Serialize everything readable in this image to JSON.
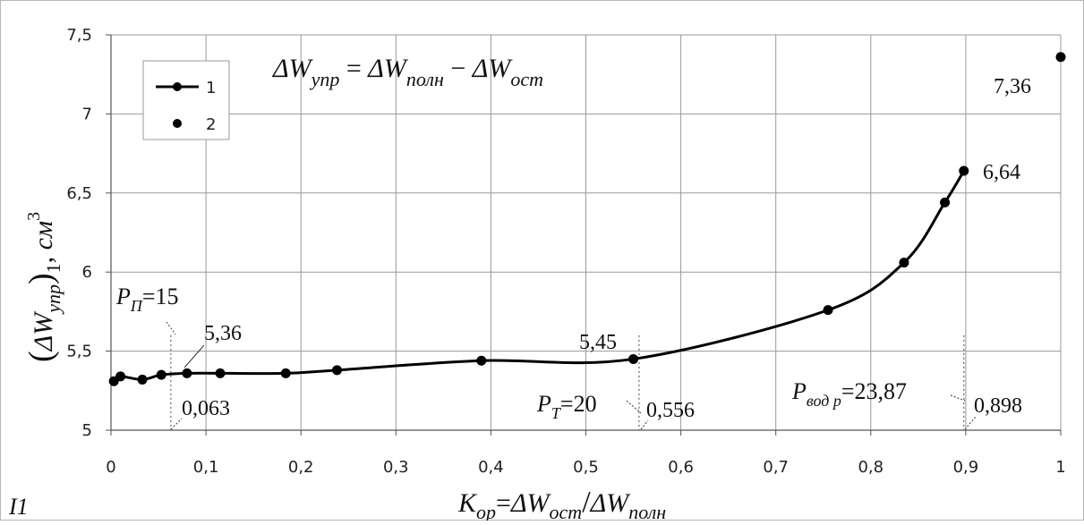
{
  "chart_data": {
    "type": "line",
    "panel_label": "I1",
    "formula": {
      "lhs_main": "ΔW",
      "lhs_sub": "упр",
      "eq": " = ",
      "t1_main": "ΔW",
      "t1_sub": "полн",
      "minus": " − ",
      "t2_main": "ΔW",
      "t2_sub": "ост"
    },
    "xlabel": {
      "k": "K",
      "k_sub": "ор",
      "eq": "=",
      "num_main": "ΔW",
      "num_sub": "ост",
      "slash": "/",
      "den_main": "ΔW",
      "den_sub": "полн"
    },
    "ylabel": {
      "lpar": "(",
      "main": "ΔW",
      "sub": "упр",
      "rpar": ")",
      "outer_sub": "1",
      "sep": ", ",
      "unit": "см",
      "unit_sup": "3"
    },
    "xlim": [
      0,
      1
    ],
    "ylim": [
      5,
      7.5
    ],
    "x_ticks": [
      0,
      0.1,
      0.2,
      0.3,
      0.4,
      0.5,
      0.6,
      0.7,
      0.8,
      0.9,
      1
    ],
    "x_tick_labels": [
      "0",
      "0,1",
      "0,2",
      "0,3",
      "0,4",
      "0,5",
      "0,6",
      "0,7",
      "0,8",
      "0,9",
      "1"
    ],
    "y_ticks": [
      5,
      5.5,
      6,
      6.5,
      7,
      7.5
    ],
    "y_tick_labels": [
      "5",
      "5,5",
      "6",
      "6,5",
      "7",
      "7,5"
    ],
    "grid": true,
    "legend_placement": "top-left",
    "series": [
      {
        "name": "1",
        "style": "line-with-markers",
        "color": "#000000",
        "x": [
          0.003,
          0.01,
          0.033,
          0.053,
          0.08,
          0.115,
          0.184,
          0.238,
          0.39,
          0.55,
          0.755,
          0.835,
          0.878,
          0.898
        ],
        "y": [
          5.31,
          5.34,
          5.32,
          5.35,
          5.36,
          5.36,
          5.36,
          5.38,
          5.44,
          5.45,
          5.76,
          6.06,
          6.44,
          6.64
        ]
      },
      {
        "name": "2",
        "style": "markers",
        "color": "#000000",
        "x": [
          1.0
        ],
        "y": [
          7.36
        ]
      }
    ],
    "vlines": [
      {
        "x": 0.063,
        "y_top": 5.6
      },
      {
        "x": 0.556,
        "y_top": 5.6
      },
      {
        "x": 0.898,
        "y_top": 5.6
      }
    ],
    "annotations": {
      "pp_main": "P",
      "pp_sub": "П",
      "pp_val": "=15",
      "pt_main": "P",
      "pt_sub": "T",
      "pt_val": "=20",
      "pv_main": "P",
      "pv_sub": "вод р",
      "pv_val": "=23,87",
      "x1": "0,063",
      "x2": "0,556",
      "x3": "0,898",
      "y1": "5,36",
      "y2": "5,45",
      "y3": "6,64",
      "y4": "7,36"
    }
  }
}
